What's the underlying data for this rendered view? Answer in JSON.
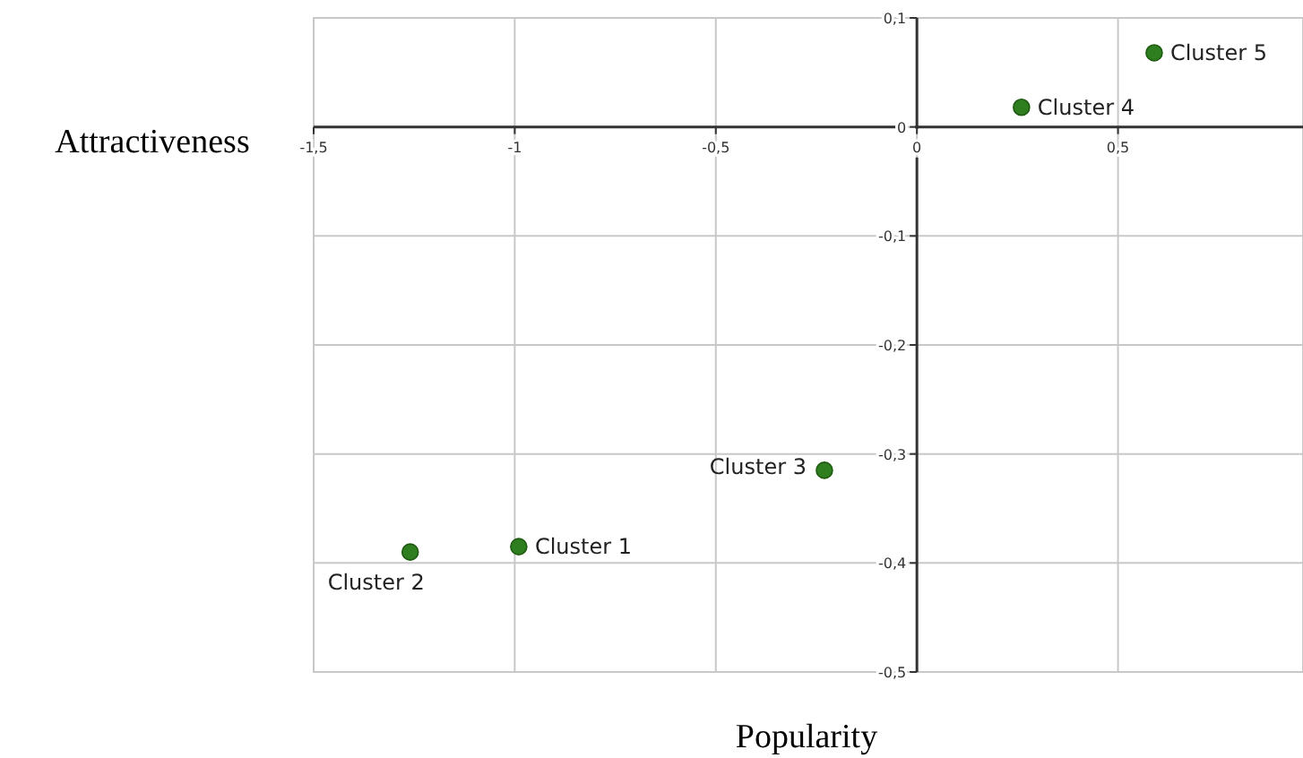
{
  "chart_data": {
    "type": "scatter",
    "xlabel": "Popularity",
    "ylabel": "Attractiveness",
    "x": [
      -0.99,
      -1.26,
      -0.23,
      0.26,
      0.59
    ],
    "values": [
      -0.385,
      -0.39,
      -0.315,
      0.018,
      0.068
    ],
    "color": "#2e7d1e",
    "marker": "circle",
    "grid": true,
    "xlim": [
      -1.5,
      0.96
    ],
    "xticks": [
      {
        "value": -1.5,
        "label": "-1,5"
      },
      -1,
      {
        "value": -0.5,
        "label": "-0,5"
      },
      0,
      {
        "value": 0.5,
        "label": "0,5"
      }
    ],
    "ylim": [
      -0.5,
      0.1
    ],
    "yticks": [
      {
        "value": 0.1,
        "label": "0,1"
      },
      0,
      {
        "value": -0.1,
        "label": "-0,1"
      },
      {
        "value": -0.2,
        "label": "-0,2"
      },
      {
        "value": -0.3,
        "label": "-0,3"
      },
      {
        "value": -0.4,
        "label": "-0,4"
      },
      {
        "value": -0.5,
        "label": "-0,5"
      }
    ],
    "annotations": [
      {
        "text": "Cluster 1",
        "x": -0.99,
        "y": -0.385
      },
      {
        "text": "Cluster 2",
        "x": -1.26,
        "y": -0.39
      },
      {
        "text": "Cluster 3",
        "x": -0.23,
        "y": -0.315
      },
      {
        "text": "Cluster 4",
        "x": 0.26,
        "y": 0.018
      },
      {
        "text": "Cluster 5",
        "x": 0.59,
        "y": 0.068
      }
    ]
  }
}
